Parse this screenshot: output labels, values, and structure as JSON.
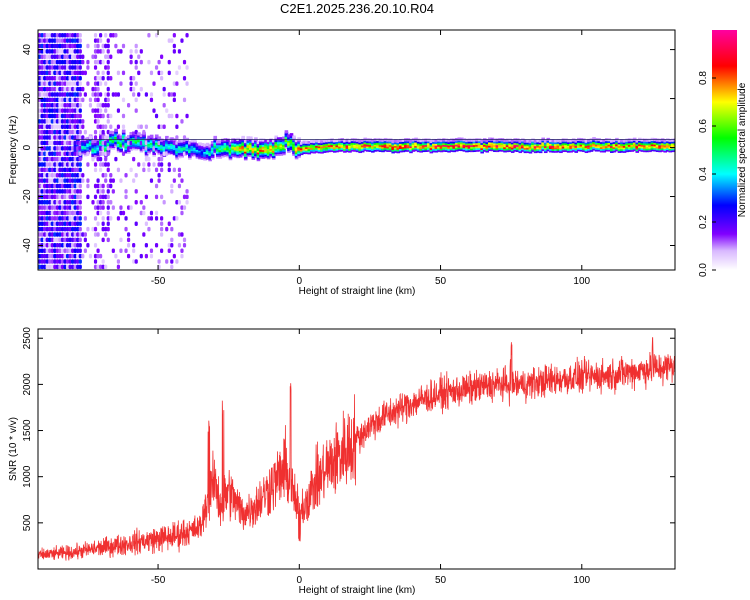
{
  "title": "C2E1.2025.236.20.10.R04",
  "chart_data": [
    {
      "type": "heatmap",
      "xlabel": "Height of straight line (km)",
      "ylabel": "Frequency (Hz)",
      "xlim": [
        -92.5,
        133
      ],
      "ylim": [
        -50,
        48
      ],
      "xticks": [
        -50,
        0,
        50,
        100
      ],
      "yticks": [
        -40,
        -20,
        0,
        20,
        40
      ],
      "colorbar": {
        "label": "Normalized spectral amplitude",
        "range": [
          0,
          1
        ],
        "ticks": [
          0,
          0.2,
          0.4,
          0.6,
          0.8
        ],
        "tick_labels": [
          "0.0",
          "0.2",
          "0.4",
          "0.6",
          "0.8"
        ],
        "colormap": "rainbow (white-violet-blue-cyan-green-yellow-red-magenta)"
      },
      "ridge": {
        "description": "dominant frequency band near 0-2 Hz from about -80 km to 133 km",
        "x": [
          -80,
          -70,
          -60,
          -50,
          -40,
          -35,
          -30,
          -20,
          -10,
          -5,
          0,
          10,
          20,
          50,
          80,
          100,
          133
        ],
        "freq": [
          1,
          1,
          3,
          1,
          0,
          -2,
          0,
          0,
          0,
          2,
          0,
          1,
          1,
          1,
          1,
          1,
          1
        ],
        "peak_amplitude": [
          0.4,
          0.5,
          0.55,
          0.5,
          0.45,
          0.35,
          0.5,
          0.8,
          0.8,
          0.6,
          0.8,
          0.8,
          0.85,
          0.9,
          0.9,
          0.85,
          0.85
        ]
      },
      "noise_region": {
        "x_range": [
          -92.5,
          -40
        ],
        "amplitude": [
          0.05,
          0.3
        ]
      }
    },
    {
      "type": "line",
      "xlabel": "Height of straight line (km)",
      "ylabel": "SNR (10 * v/v)",
      "xlim": [
        -92.5,
        133
      ],
      "ylim": [
        0,
        2600
      ],
      "xticks": [
        -50,
        0,
        50,
        100
      ],
      "yticks": [
        500,
        1000,
        1500,
        2000,
        2500
      ],
      "line_color": "#f03030",
      "trend": {
        "x": [
          -92.5,
          -80,
          -60,
          -45,
          -35,
          -32,
          -30,
          -28,
          -25,
          -20,
          -15,
          -10,
          -7,
          -5,
          -2,
          0,
          5,
          10,
          15,
          20,
          25,
          30,
          40,
          50,
          60,
          70,
          80,
          90,
          100,
          110,
          120,
          133
        ],
        "y": [
          150,
          180,
          280,
          350,
          450,
          800,
          950,
          700,
          850,
          600,
          700,
          900,
          1000,
          1100,
          800,
          600,
          900,
          1100,
          1250,
          1400,
          1550,
          1650,
          1800,
          1900,
          1950,
          2000,
          2000,
          2050,
          2080,
          2100,
          2150,
          2200
        ]
      },
      "spikes": [
        {
          "x": -32,
          "y": 1650
        },
        {
          "x": -27,
          "y": 1850
        },
        {
          "x": -3,
          "y": 2080
        },
        {
          "x": 0,
          "y": 330
        },
        {
          "x": 75,
          "y": 2480
        },
        {
          "x": 125,
          "y": 2550
        }
      ]
    }
  ]
}
